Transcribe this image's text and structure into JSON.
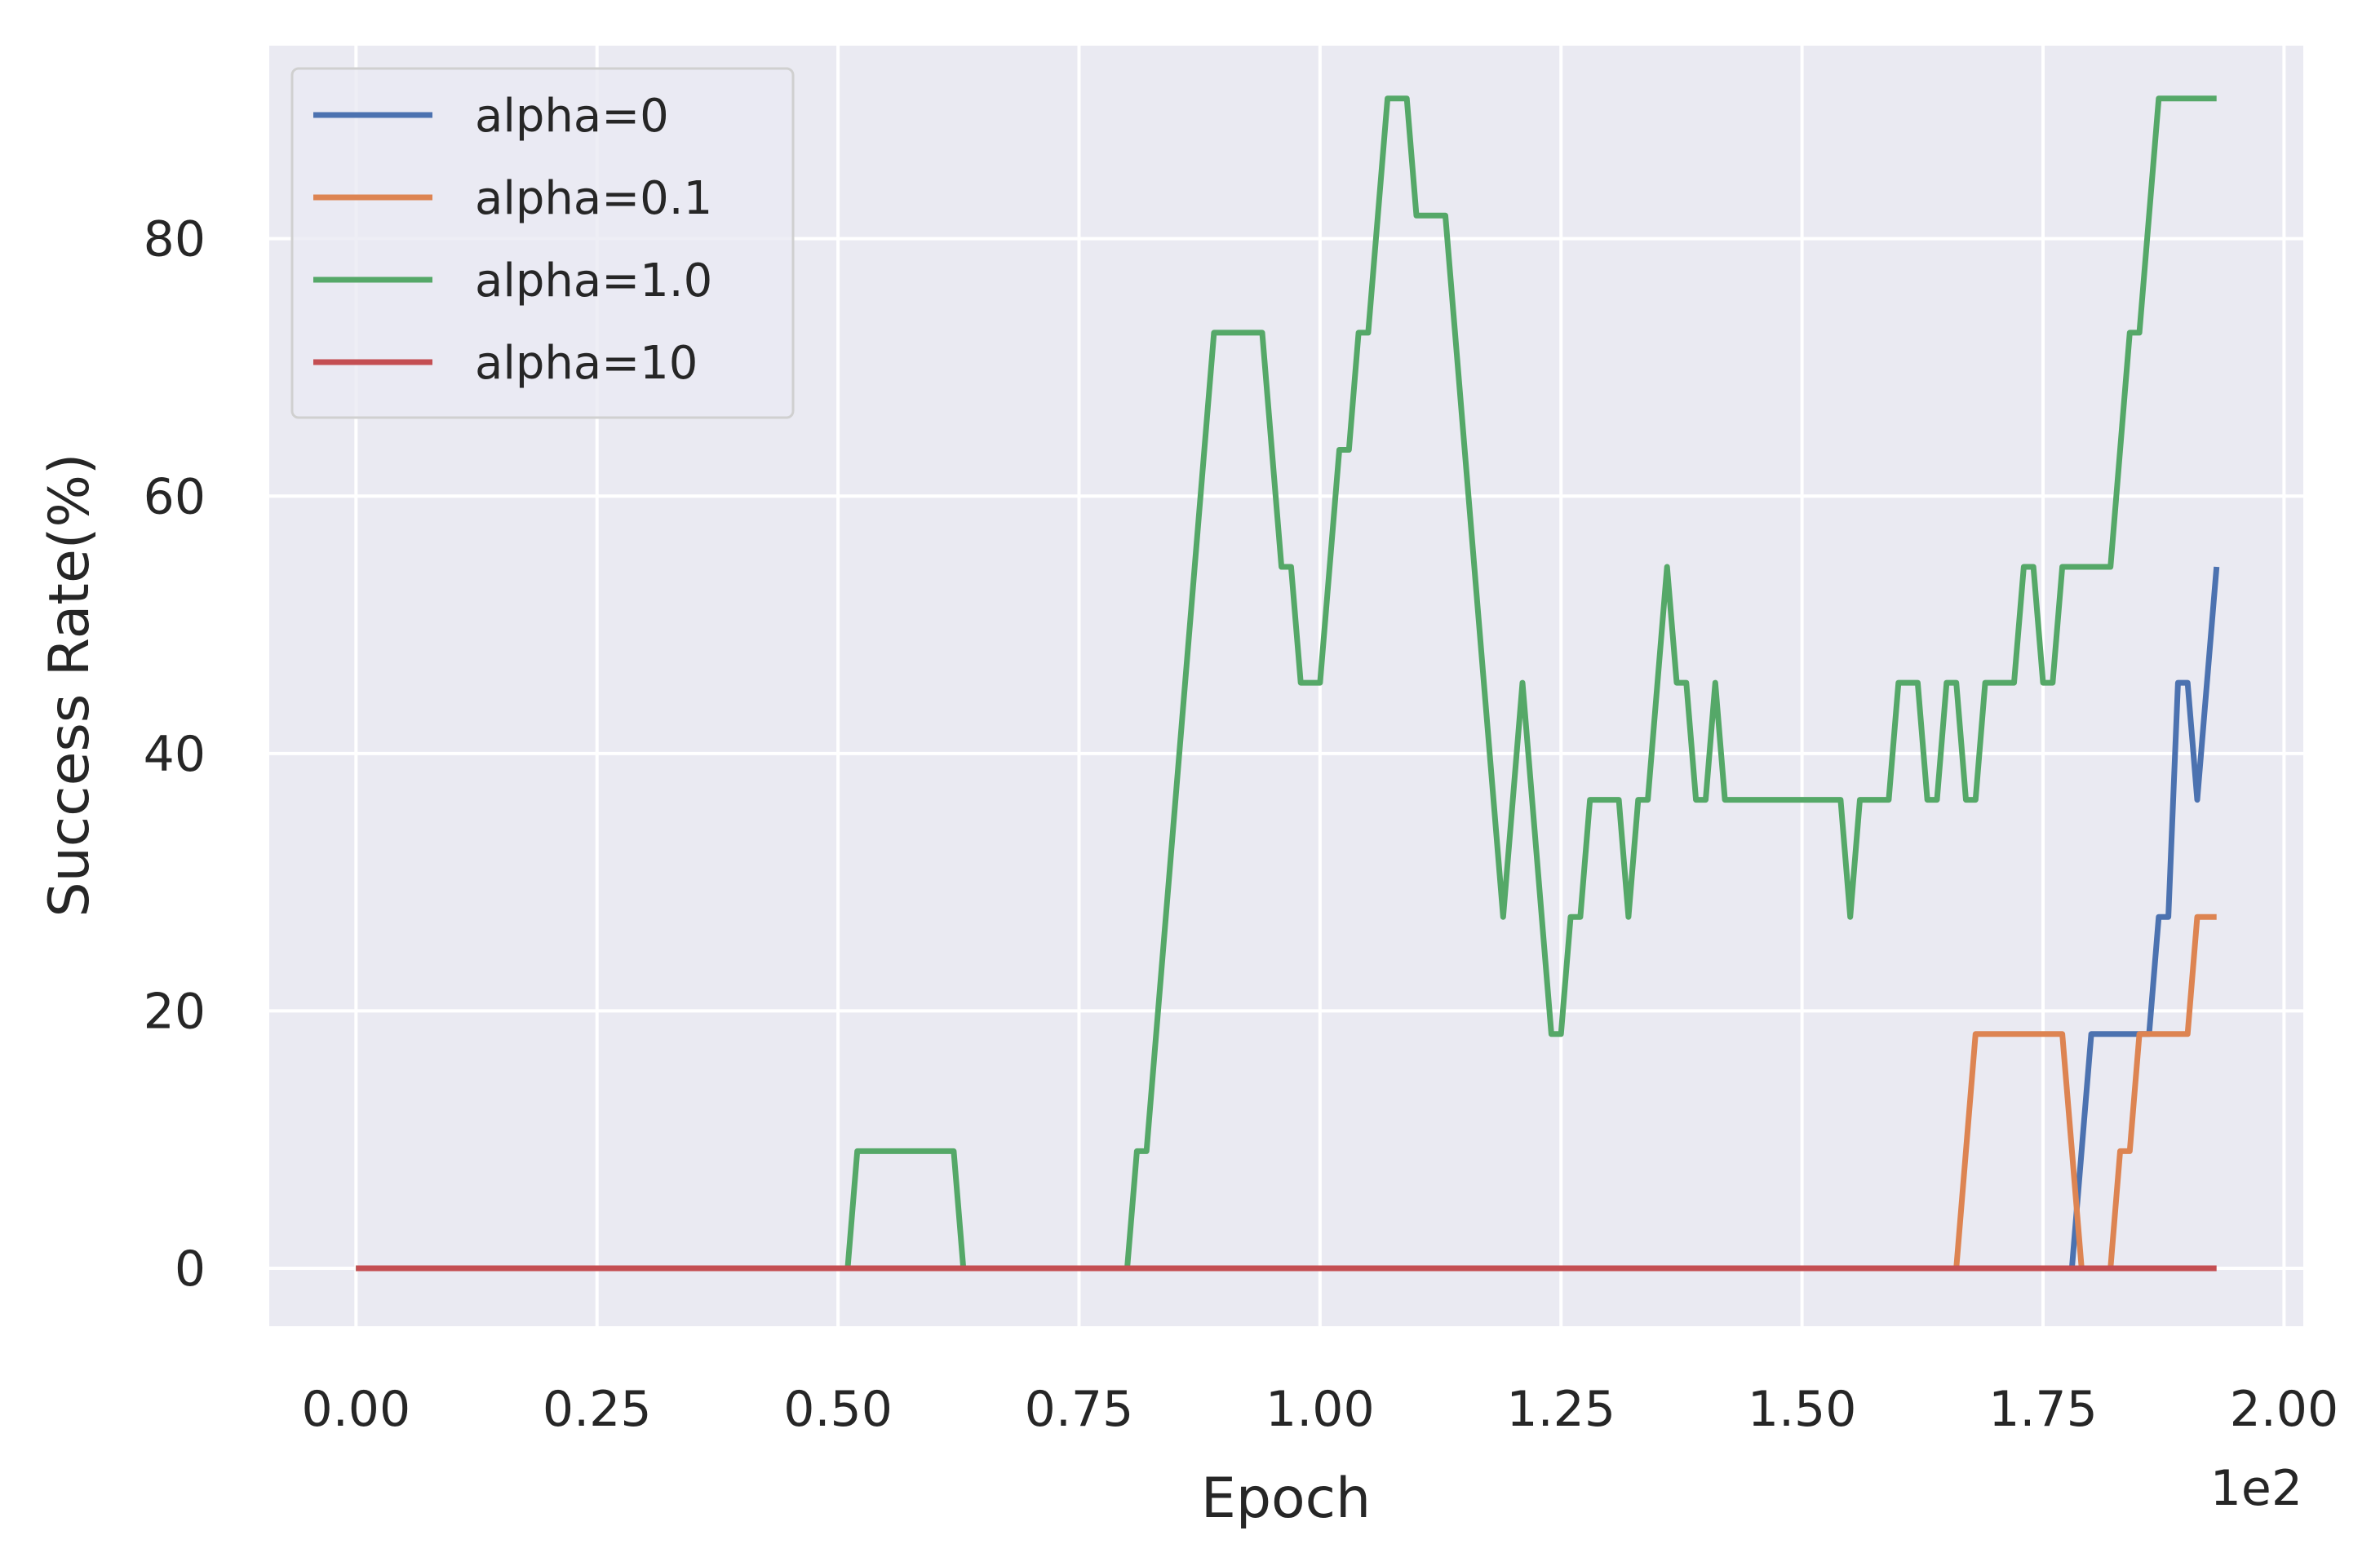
{
  "chart_data": {
    "type": "line",
    "title": "",
    "xlabel": "Epoch",
    "ylabel": "Success Rate(%)",
    "x_offset_label": "1e2",
    "xlim": [
      -0.09,
      2.02
    ],
    "ylim": [
      -4.5,
      95
    ],
    "x_ticks": [
      0.0,
      0.25,
      0.5,
      0.75,
      1.0,
      1.25,
      1.5,
      1.75,
      2.0
    ],
    "x_tick_labels": [
      "0.00",
      "0.25",
      "0.50",
      "0.75",
      "1.00",
      "1.25",
      "1.50",
      "1.75",
      "2.00"
    ],
    "y_ticks": [
      0,
      20,
      40,
      60,
      80
    ],
    "y_tick_labels": [
      "0",
      "20",
      "40",
      "60",
      "80"
    ],
    "grid": true,
    "legend_position": "top-left",
    "series": [
      {
        "name": "alpha=0",
        "color": "#4c72b0",
        "x": [
          0,
          1.78,
          1.8,
          1.86,
          1.87,
          1.88,
          1.89,
          1.9,
          1.91,
          1.93
        ],
        "y": [
          0,
          0,
          18.2,
          18.2,
          27.3,
          27.3,
          45.5,
          45.5,
          36.4,
          54.5
        ]
      },
      {
        "name": "alpha=0.1",
        "color": "#dd8452",
        "x": [
          0,
          1.66,
          1.68,
          1.77,
          1.79,
          1.82,
          1.83,
          1.84,
          1.85,
          1.86,
          1.9,
          1.91,
          1.93
        ],
        "y": [
          0,
          0,
          18.2,
          18.2,
          0,
          0,
          9.1,
          9.1,
          18.2,
          18.2,
          18.2,
          27.3,
          27.3
        ]
      },
      {
        "name": "alpha=1.0",
        "color": "#55a868",
        "x": [
          0,
          0.51,
          0.52,
          0.62,
          0.63,
          0.8,
          0.81,
          0.82,
          0.89,
          0.94,
          0.96,
          0.97,
          0.98,
          1.0,
          1.02,
          1.03,
          1.04,
          1.05,
          1.07,
          1.09,
          1.1,
          1.13,
          1.19,
          1.21,
          1.24,
          1.25,
          1.26,
          1.27,
          1.28,
          1.31,
          1.32,
          1.33,
          1.34,
          1.36,
          1.37,
          1.38,
          1.39,
          1.4,
          1.41,
          1.42,
          1.54,
          1.55,
          1.56,
          1.59,
          1.6,
          1.62,
          1.63,
          1.64,
          1.65,
          1.66,
          1.67,
          1.68,
          1.69,
          1.72,
          1.73,
          1.74,
          1.75,
          1.76,
          1.77,
          1.78,
          1.79,
          1.82,
          1.84,
          1.85,
          1.87,
          1.93
        ],
        "y": [
          0,
          0,
          9.1,
          9.1,
          0,
          0,
          9.1,
          9.1,
          72.7,
          72.7,
          54.5,
          54.5,
          45.5,
          45.5,
          63.6,
          63.6,
          72.7,
          72.7,
          90.9,
          90.9,
          81.8,
          81.8,
          27.3,
          45.5,
          18.2,
          18.2,
          27.3,
          27.3,
          36.4,
          36.4,
          27.3,
          36.4,
          36.4,
          54.5,
          45.5,
          45.5,
          36.4,
          36.4,
          45.5,
          36.4,
          36.4,
          27.3,
          36.4,
          36.4,
          45.5,
          45.5,
          36.4,
          36.4,
          45.5,
          45.5,
          36.4,
          36.4,
          45.5,
          45.5,
          54.5,
          54.5,
          45.5,
          45.5,
          54.5,
          54.5,
          54.5,
          54.5,
          72.7,
          72.7,
          90.9,
          90.9
        ]
      },
      {
        "name": "alpha=10",
        "color": "#c44e52",
        "x": [
          0,
          1.93
        ],
        "y": [
          0,
          0
        ]
      }
    ]
  }
}
